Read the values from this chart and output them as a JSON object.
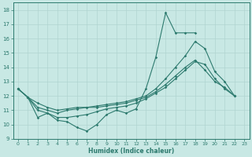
{
  "xlabel": "Humidex (Indice chaleur)",
  "xlim": [
    -0.5,
    23.5
  ],
  "ylim": [
    9,
    18.5
  ],
  "yticks": [
    9,
    10,
    11,
    12,
    13,
    14,
    15,
    16,
    17,
    18
  ],
  "xticks": [
    0,
    1,
    2,
    3,
    4,
    5,
    6,
    7,
    8,
    9,
    10,
    11,
    12,
    13,
    14,
    15,
    16,
    17,
    18,
    19,
    20,
    21,
    22,
    23
  ],
  "background_color": "#c8e8e4",
  "line_color": "#2d7a6e",
  "grid_color": "#b0d4d0",
  "lines": [
    {
      "x": [
        0,
        1,
        2,
        3,
        4,
        5,
        6,
        7,
        8,
        9,
        10,
        11,
        12,
        13,
        14,
        15,
        16,
        17,
        18
      ],
      "y": [
        12.5,
        11.9,
        10.5,
        10.8,
        10.3,
        10.2,
        9.8,
        9.55,
        10.0,
        10.7,
        11.0,
        10.8,
        11.1,
        12.5,
        14.7,
        17.8,
        16.4,
        16.4,
        16.4
      ]
    },
    {
      "x": [
        0,
        1,
        2,
        3,
        4,
        5,
        6,
        7,
        8,
        9,
        10,
        11,
        12,
        13,
        14,
        15,
        16,
        17,
        18,
        19,
        20,
        21,
        22
      ],
      "y": [
        12.5,
        11.9,
        11.5,
        11.2,
        11.0,
        11.1,
        11.2,
        11.2,
        11.3,
        11.4,
        11.5,
        11.6,
        11.8,
        12.0,
        12.5,
        13.2,
        14.0,
        14.8,
        15.8,
        15.3,
        13.7,
        13.0,
        12.0
      ]
    },
    {
      "x": [
        0,
        1,
        2,
        3,
        4,
        5,
        6,
        7,
        8,
        9,
        10,
        11,
        12,
        13,
        14,
        15,
        16,
        17,
        18,
        19,
        20,
        21,
        22
      ],
      "y": [
        12.5,
        11.9,
        11.2,
        11.0,
        10.8,
        11.0,
        11.1,
        11.2,
        11.2,
        11.3,
        11.4,
        11.5,
        11.7,
        11.9,
        12.3,
        12.8,
        13.4,
        14.0,
        14.5,
        13.8,
        13.0,
        12.6,
        12.0
      ]
    },
    {
      "x": [
        0,
        1,
        2,
        3,
        4,
        5,
        6,
        7,
        8,
        9,
        10,
        11,
        12,
        13,
        14,
        15,
        16,
        17,
        18,
        19,
        20,
        21,
        22
      ],
      "y": [
        12.5,
        11.9,
        11.0,
        10.8,
        10.5,
        10.5,
        10.6,
        10.7,
        10.9,
        11.1,
        11.2,
        11.3,
        11.5,
        11.8,
        12.2,
        12.6,
        13.2,
        13.8,
        14.4,
        14.2,
        13.2,
        12.5,
        12.0
      ]
    }
  ]
}
